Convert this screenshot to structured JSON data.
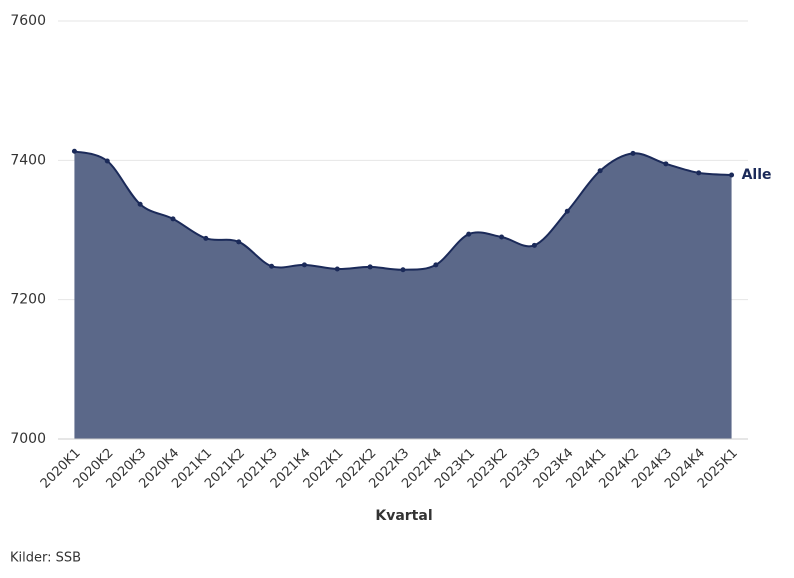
{
  "chart_data": {
    "type": "area",
    "categories": [
      "2020K1",
      "2020K2",
      "2020K3",
      "2020K4",
      "2021K1",
      "2021K2",
      "2021K3",
      "2021K4",
      "2022K1",
      "2022K2",
      "2022K3",
      "2022K4",
      "2023K1",
      "2023K2",
      "2023K3",
      "2023K4",
      "2024K1",
      "2024K2",
      "2024K3",
      "2024K4",
      "2025K1"
    ],
    "series": [
      {
        "name": "Alle",
        "color": "#1b2a59",
        "fill": "#5b6889",
        "values": [
          7413,
          7399,
          7337,
          7316,
          7288,
          7283,
          7248,
          7250,
          7244,
          7247,
          7243,
          7250,
          7294,
          7290,
          7278,
          7327,
          7385,
          7410,
          7395,
          7382,
          7379
        ]
      }
    ],
    "ylim": [
      7000,
      7600
    ],
    "yticks": [
      7000,
      7200,
      7400,
      7600
    ],
    "grid": true,
    "xlabel": "Kvartal",
    "source": "Kilder: SSB"
  }
}
